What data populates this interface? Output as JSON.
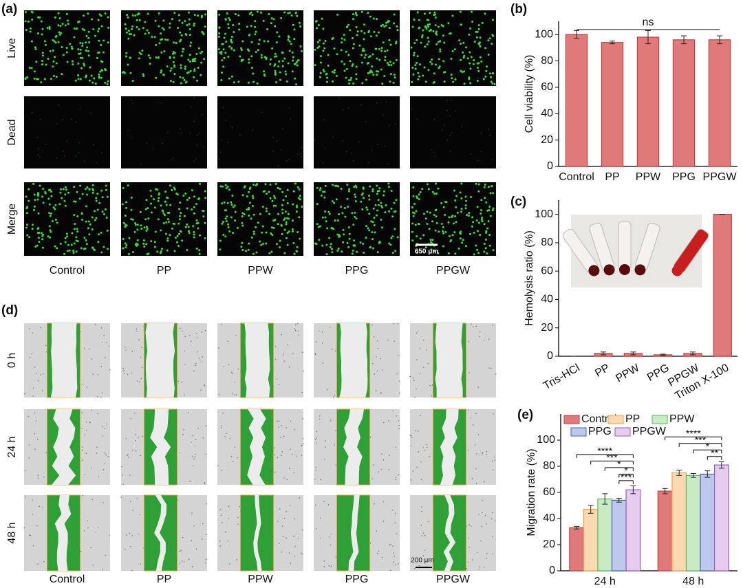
{
  "panel_a": {
    "label": "(a)",
    "rows": [
      "Live",
      "Dead",
      "Merge"
    ],
    "columns": [
      "Control",
      "PP",
      "PPW",
      "PPG",
      "PPGW"
    ],
    "scale_bar": "650 μm"
  },
  "panel_d": {
    "label": "(d)",
    "rows": [
      "0 h",
      "24 h",
      "48 h"
    ],
    "columns": [
      "Control",
      "PP",
      "PPW",
      "PPG",
      "PPGW"
    ],
    "scale_bar": "200 μm"
  },
  "chart_data": [
    {
      "type": "bar",
      "label": "(b)",
      "y_label": "Cell viability (%)",
      "categories": [
        "Control",
        "PP",
        "PPW",
        "PPG",
        "PPGW"
      ],
      "values": [
        100,
        94,
        98,
        96,
        96
      ],
      "errors": [
        3,
        1,
        5,
        3,
        3
      ],
      "color": "#e07a7a",
      "edge": "#c0403f",
      "ylim": [
        0,
        110
      ],
      "yticks": [
        0,
        20,
        40,
        60,
        80,
        100
      ],
      "annotation": "ns"
    },
    {
      "type": "bar",
      "label": "(c)",
      "y_label": "Hemolysis ratio (%)",
      "categories": [
        "Tris-HCl",
        "PP",
        "PPW",
        "PPG",
        "PPGW",
        "Triton X-100"
      ],
      "values": [
        0,
        2,
        2,
        1,
        2,
        100
      ],
      "errors": [
        0,
        1,
        1,
        0.5,
        1,
        0
      ],
      "color": "#e07a7a",
      "edge": "#c0403f",
      "ylim": [
        0,
        110
      ],
      "yticks": [
        0,
        20,
        40,
        60,
        80,
        100
      ]
    },
    {
      "type": "grouped_bar",
      "label": "(e)",
      "y_label": "Migration rate (%)",
      "categories": [
        "24 h",
        "48 h"
      ],
      "legend": "upper left",
      "series": [
        {
          "name": "Control",
          "color": "#e07a7a",
          "edge": "#c0403f",
          "values": [
            33,
            61
          ],
          "errors": [
            1,
            2
          ]
        },
        {
          "name": "PP",
          "color": "#fcd9b0",
          "edge": "#f0a050",
          "values": [
            47,
            75
          ],
          "errors": [
            3,
            2
          ]
        },
        {
          "name": "PPW",
          "color": "#c9ebc4",
          "edge": "#5cb85c",
          "values": [
            55,
            73
          ],
          "errors": [
            4,
            1.5
          ]
        },
        {
          "name": "PPG",
          "color": "#bcc8ec",
          "edge": "#4a5fc0",
          "values": [
            54,
            74
          ],
          "errors": [
            1.5,
            2.5
          ]
        },
        {
          "name": "PPGW",
          "color": "#e6cdef",
          "edge": "#9b59b6",
          "values": [
            62,
            81
          ],
          "errors": [
            3,
            2.5
          ]
        }
      ],
      "significance": [
        [
          "****",
          "***",
          "*",
          "*",
          "***"
        ],
        [
          "****",
          "***",
          "*",
          "**"
        ]
      ],
      "ylim": [
        0,
        120
      ],
      "yticks": [
        0,
        20,
        40,
        60,
        80,
        100
      ]
    }
  ]
}
